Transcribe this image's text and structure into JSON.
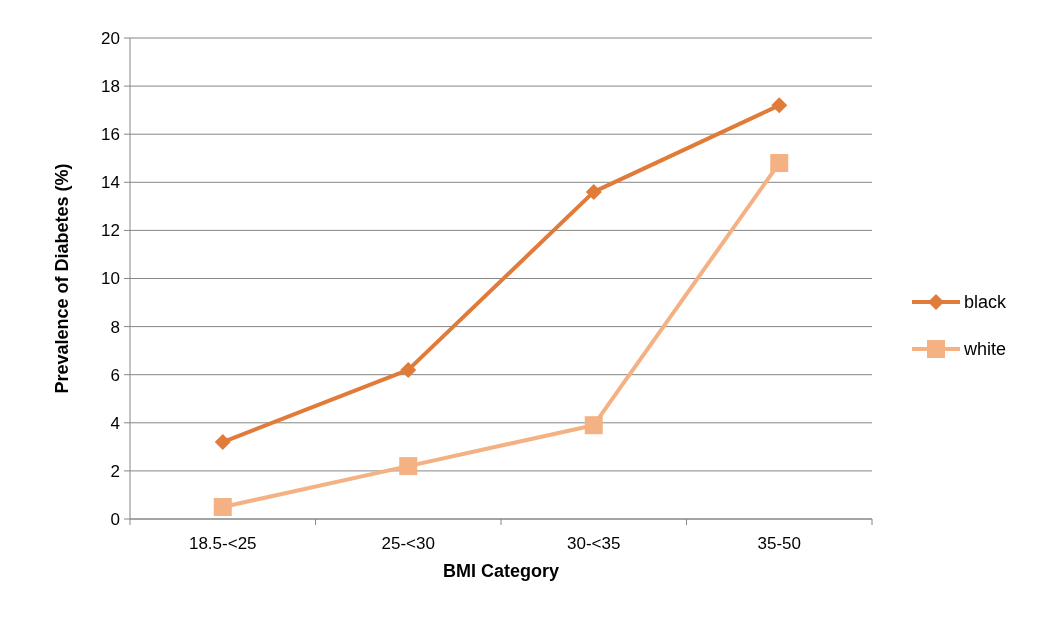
{
  "chart_data": {
    "type": "line",
    "xlabel": "BMI Category",
    "ylabel": "Prevalence of Diabetes (%)",
    "categories": [
      "18.5-<25",
      "25-<30",
      "30-<35",
      "35-50"
    ],
    "series": [
      {
        "name": "black",
        "color": "#e07b39",
        "marker": "diamond",
        "values": [
          3.2,
          6.2,
          13.6,
          17.2
        ]
      },
      {
        "name": "white",
        "color": "#f4b183",
        "marker": "square",
        "values": [
          0.5,
          2.2,
          3.9,
          14.8
        ]
      }
    ],
    "ylim": [
      0,
      20
    ],
    "yticks": [
      0,
      2,
      4,
      6,
      8,
      10,
      12,
      14,
      16,
      18,
      20
    ],
    "grid": "y",
    "legend": "right",
    "line_style": "solid"
  }
}
